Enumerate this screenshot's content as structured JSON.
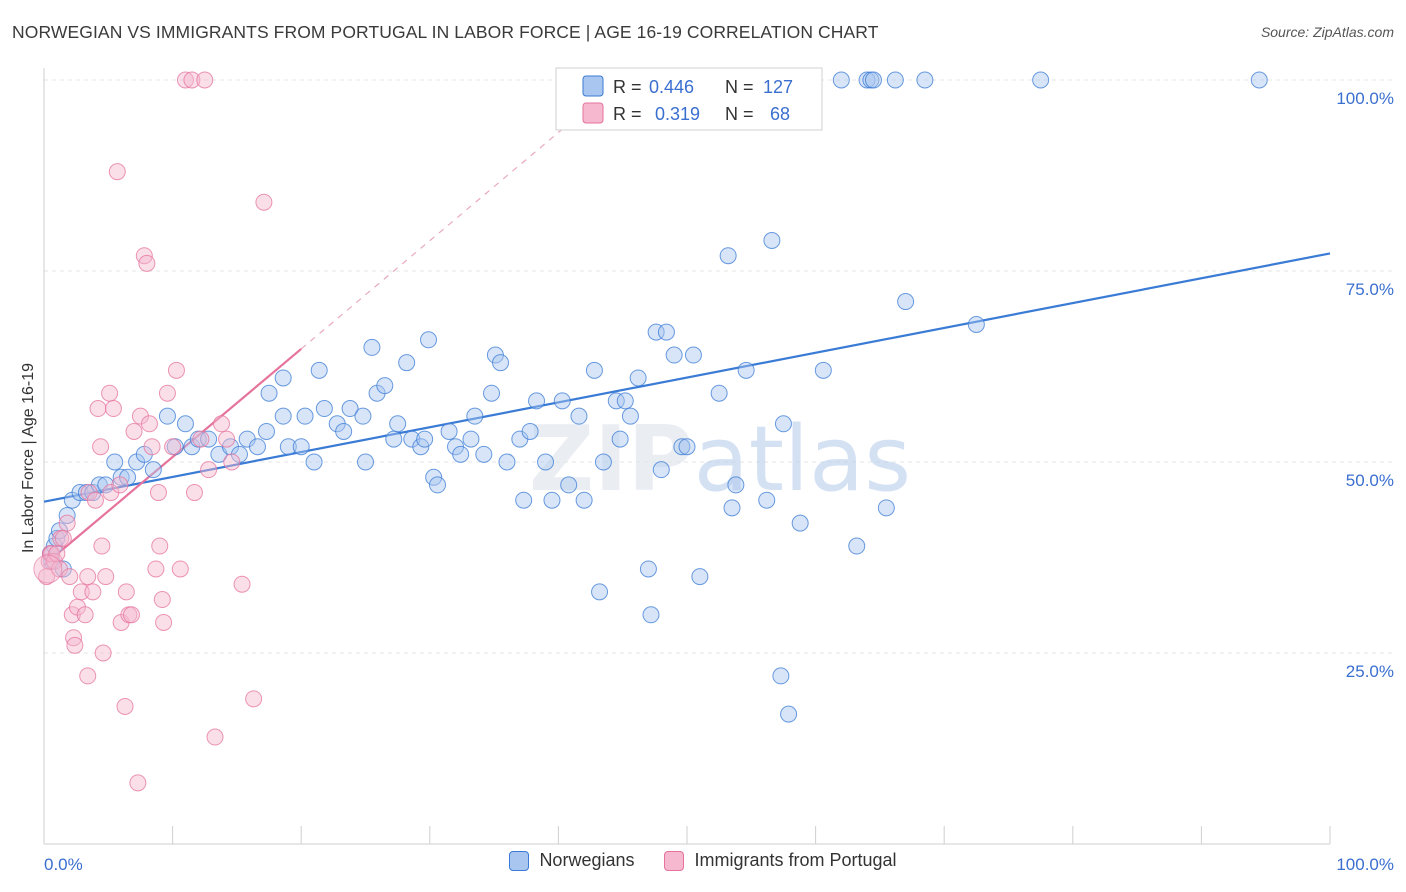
{
  "title": "NORWEGIAN VS IMMIGRANTS FROM PORTUGAL IN LABOR FORCE | AGE 16-19 CORRELATION CHART",
  "source": "Source: ZipAtlas.com",
  "watermark": "ZIPatlas",
  "colors": {
    "blue": "#3a7bd5",
    "pink": "#e5739c",
    "blue_fill": "#a9c6f0",
    "pink_fill": "#f5b8ce"
  },
  "stats_legend": [
    {
      "r_label": "R =",
      "r_value": "0.446",
      "n_label": "N =",
      "n_value": "127"
    },
    {
      "r_label": "R =",
      "r_value": "0.319",
      "n_label": "N =",
      "n_value": "68"
    }
  ],
  "bottom_legend": [
    {
      "label": "Norwegians"
    },
    {
      "label": "Immigrants from Portugal"
    }
  ],
  "chart_data": {
    "type": "scatter",
    "title": "NORWEGIAN VS IMMIGRANTS FROM PORTUGAL IN LABOR FORCE | AGE 16-19 CORRELATION CHART",
    "xlabel": "",
    "ylabel": "In Labor Force | Age 16-19",
    "xlim": [
      0,
      100
    ],
    "ylim": [
      0,
      102
    ],
    "x_tick_labels": [
      "0.0%",
      "100.0%"
    ],
    "y_ticks": [
      25,
      50,
      75,
      100
    ],
    "y_tick_labels": [
      "25.0%",
      "50.0%",
      "75.0%",
      "100.0%"
    ],
    "series": [
      {
        "name": "Norwegians",
        "r": 0.446,
        "n": 127,
        "trend": {
          "x": [
            0,
            100
          ],
          "y": [
            44.8,
            77.3
          ]
        },
        "points": [
          [
            0.5,
            38
          ],
          [
            0.6,
            37
          ],
          [
            0.8,
            39
          ],
          [
            1,
            40
          ],
          [
            1.2,
            41
          ],
          [
            1.5,
            36
          ],
          [
            1.8,
            43
          ],
          [
            2.2,
            45
          ],
          [
            2.8,
            46
          ],
          [
            3.3,
            46
          ],
          [
            3.8,
            46
          ],
          [
            4.3,
            47
          ],
          [
            4.8,
            47
          ],
          [
            5.5,
            50
          ],
          [
            6,
            48
          ],
          [
            6.5,
            48
          ],
          [
            7.2,
            50
          ],
          [
            7.8,
            51
          ],
          [
            8.5,
            49
          ],
          [
            9.6,
            56
          ],
          [
            10.2,
            52
          ],
          [
            11,
            55
          ],
          [
            11.5,
            52
          ],
          [
            12,
            53
          ],
          [
            12.8,
            53
          ],
          [
            13.6,
            51
          ],
          [
            14.5,
            52
          ],
          [
            15.2,
            51
          ],
          [
            15.8,
            53
          ],
          [
            16.6,
            52
          ],
          [
            17.3,
            54
          ],
          [
            17.5,
            59
          ],
          [
            18.6,
            61
          ],
          [
            18.6,
            56
          ],
          [
            19,
            52
          ],
          [
            20,
            52
          ],
          [
            20.3,
            56
          ],
          [
            21,
            50
          ],
          [
            21.4,
            62
          ],
          [
            21.8,
            57
          ],
          [
            22.8,
            55
          ],
          [
            23.3,
            54
          ],
          [
            23.8,
            57
          ],
          [
            24.8,
            56
          ],
          [
            25,
            50
          ],
          [
            25.5,
            65
          ],
          [
            25.9,
            59
          ],
          [
            26.5,
            60
          ],
          [
            27.2,
            53
          ],
          [
            27.5,
            55
          ],
          [
            28.2,
            63
          ],
          [
            28.6,
            53
          ],
          [
            29.3,
            52
          ],
          [
            29.6,
            53
          ],
          [
            29.9,
            66
          ],
          [
            30.3,
            48
          ],
          [
            30.6,
            47
          ],
          [
            31.5,
            54
          ],
          [
            32,
            52
          ],
          [
            32.4,
            51
          ],
          [
            33.2,
            53
          ],
          [
            33.5,
            56
          ],
          [
            34.2,
            51
          ],
          [
            34.8,
            59
          ],
          [
            35.1,
            64
          ],
          [
            35.5,
            63
          ],
          [
            36,
            50
          ],
          [
            37,
            53
          ],
          [
            37.3,
            45
          ],
          [
            37.8,
            54
          ],
          [
            38.3,
            58
          ],
          [
            39,
            50
          ],
          [
            39.5,
            45
          ],
          [
            40.3,
            58
          ],
          [
            40.8,
            47
          ],
          [
            41.6,
            56
          ],
          [
            42,
            45
          ],
          [
            42.8,
            62
          ],
          [
            43.2,
            33
          ],
          [
            43.5,
            50
          ],
          [
            44.5,
            58
          ],
          [
            44.8,
            53
          ],
          [
            45.2,
            58
          ],
          [
            45.6,
            56
          ],
          [
            46.2,
            61
          ],
          [
            47,
            36
          ],
          [
            47.2,
            30
          ],
          [
            47.6,
            67
          ],
          [
            48,
            49
          ],
          [
            48.4,
            67
          ],
          [
            49,
            64
          ],
          [
            49.6,
            52
          ],
          [
            50,
            52
          ],
          [
            50.5,
            64
          ],
          [
            51,
            35
          ],
          [
            52.5,
            59
          ],
          [
            53.2,
            77
          ],
          [
            53.5,
            44
          ],
          [
            53.8,
            47
          ],
          [
            54.6,
            62
          ],
          [
            56.2,
            45
          ],
          [
            56.6,
            79
          ],
          [
            57.3,
            22
          ],
          [
            57.5,
            55
          ],
          [
            57.9,
            17
          ],
          [
            58.8,
            42
          ],
          [
            60.6,
            62
          ],
          [
            62,
            100
          ],
          [
            63.2,
            39
          ],
          [
            64,
            100
          ],
          [
            64.3,
            100
          ],
          [
            64.5,
            100
          ],
          [
            65.5,
            44
          ],
          [
            66.2,
            100
          ],
          [
            67,
            71
          ],
          [
            68.5,
            100
          ],
          [
            72.5,
            68
          ],
          [
            77.5,
            100
          ],
          [
            94.5,
            100
          ]
        ]
      },
      {
        "name": "Immigrants from Portugal",
        "r": 0.319,
        "n": 68,
        "trend": {
          "x": [
            0,
            20
          ],
          "y": [
            36.5,
            64.8
          ]
        },
        "trend_extended": {
          "x": [
            20,
            44
          ],
          "y": [
            64.8,
            98.8
          ]
        },
        "points": [
          [
            0.2,
            35
          ],
          [
            0.4,
            37
          ],
          [
            0.5,
            38
          ],
          [
            0.6,
            38
          ],
          [
            0.8,
            37
          ],
          [
            1,
            38
          ],
          [
            1.2,
            36
          ],
          [
            1.3,
            40
          ],
          [
            1.5,
            40
          ],
          [
            1.8,
            42
          ],
          [
            2,
            35
          ],
          [
            2.2,
            30
          ],
          [
            2.3,
            27
          ],
          [
            2.4,
            26
          ],
          [
            2.6,
            31
          ],
          [
            2.9,
            33
          ],
          [
            3.2,
            30
          ],
          [
            3.4,
            35
          ],
          [
            3.4,
            22
          ],
          [
            3.5,
            46
          ],
          [
            3.8,
            33
          ],
          [
            4,
            45
          ],
          [
            4.2,
            57
          ],
          [
            4.4,
            52
          ],
          [
            4.5,
            39
          ],
          [
            4.6,
            25
          ],
          [
            4.8,
            35
          ],
          [
            5.1,
            59
          ],
          [
            5.2,
            46
          ],
          [
            5.4,
            57
          ],
          [
            5.7,
            88
          ],
          [
            5.9,
            47
          ],
          [
            6,
            29
          ],
          [
            6.3,
            18
          ],
          [
            6.4,
            33
          ],
          [
            6.6,
            30
          ],
          [
            6.8,
            30
          ],
          [
            7,
            54
          ],
          [
            7.3,
            8
          ],
          [
            7.5,
            56
          ],
          [
            7.8,
            77
          ],
          [
            8,
            76
          ],
          [
            8.2,
            55
          ],
          [
            8.4,
            52
          ],
          [
            8.7,
            36
          ],
          [
            8.9,
            46
          ],
          [
            9,
            39
          ],
          [
            9.2,
            32
          ],
          [
            9.3,
            29
          ],
          [
            9.6,
            59
          ],
          [
            10,
            52
          ],
          [
            10.3,
            62
          ],
          [
            10.6,
            36
          ],
          [
            11,
            100
          ],
          [
            11.5,
            100
          ],
          [
            11.7,
            46
          ],
          [
            12.2,
            53
          ],
          [
            12.5,
            100
          ],
          [
            12.8,
            49
          ],
          [
            13.3,
            14
          ],
          [
            13.8,
            55
          ],
          [
            14.2,
            53
          ],
          [
            14.6,
            50
          ],
          [
            15.4,
            34
          ],
          [
            16.3,
            19
          ],
          [
            17.1,
            84
          ]
        ]
      }
    ]
  }
}
